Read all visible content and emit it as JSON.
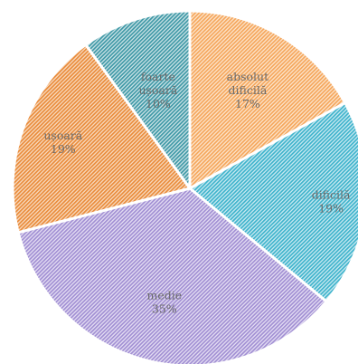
{
  "chart_data": {
    "type": "pie",
    "slices": [
      {
        "lines": [
          "absolut",
          "dificilă",
          "17%"
        ],
        "value": 17,
        "color": "#F5A65B",
        "pattern_bg": "#fce6cf"
      },
      {
        "lines": [
          "dificilă",
          "19%"
        ],
        "value": 19,
        "color": "#3EB3CC",
        "pattern_bg": "#cdebf2"
      },
      {
        "lines": [
          "medie",
          "35%"
        ],
        "value": 35,
        "color": "#A18FD3",
        "pattern_bg": "#e6e0f4"
      },
      {
        "lines": [
          "ușoară",
          "19%"
        ],
        "value": 19,
        "color": "#E98B3A",
        "pattern_bg": "#f8dcc2"
      },
      {
        "lines": [
          "foarte",
          "ușoară",
          "10%"
        ],
        "value": 10,
        "color": "#3E98A6",
        "pattern_bg": "#cfe5e8"
      }
    ]
  }
}
